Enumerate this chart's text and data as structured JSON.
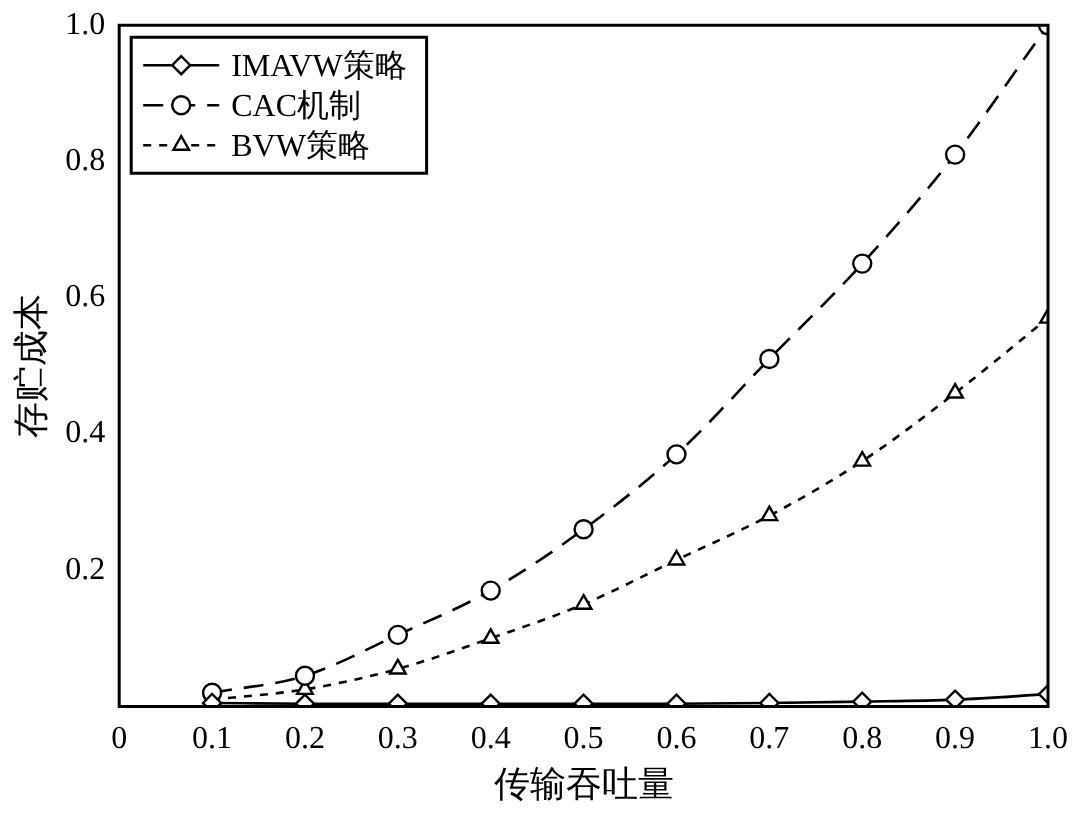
{
  "chart_data": {
    "type": "line",
    "xlabel": "传输吞吐量",
    "ylabel": "存贮成本",
    "x": [
      0.1,
      0.2,
      0.3,
      0.4,
      0.5,
      0.6,
      0.7,
      0.8,
      0.9,
      1.0
    ],
    "xlim": [
      0,
      1
    ],
    "xticks": [
      0,
      0.1,
      0.2,
      0.3,
      0.4,
      0.5,
      0.6,
      0.7,
      0.8,
      0.9,
      {
        "value": 1,
        "label": "1.0"
      }
    ],
    "ylim": [
      0,
      1
    ],
    "yticks": [
      0.2,
      0.4,
      0.6,
      0.8,
      {
        "value": 1,
        "label": "1.0"
      }
    ],
    "grid": false,
    "legend": "top left",
    "series": [
      {
        "name": "IMAVW策略",
        "color": "#000000",
        "marker": "diamond",
        "line_style": "solid",
        "values": [
          0.005,
          0.004,
          0.004,
          0.004,
          0.004,
          0.004,
          0.005,
          0.007,
          0.01,
          0.018
        ]
      },
      {
        "name": "CAC机制",
        "color": "#000000",
        "marker": "circle",
        "line_style": "dashed",
        "values": [
          0.02,
          0.045,
          0.105,
          0.17,
          0.26,
          0.37,
          0.51,
          0.65,
          0.81,
          1.0
        ]
      },
      {
        "name": "BVW策略",
        "color": "#000000",
        "marker": "triangle",
        "line_style": "dotted",
        "values": [
          0.01,
          0.025,
          0.055,
          0.1,
          0.15,
          0.215,
          0.28,
          0.36,
          0.46,
          0.57
        ]
      }
    ]
  }
}
